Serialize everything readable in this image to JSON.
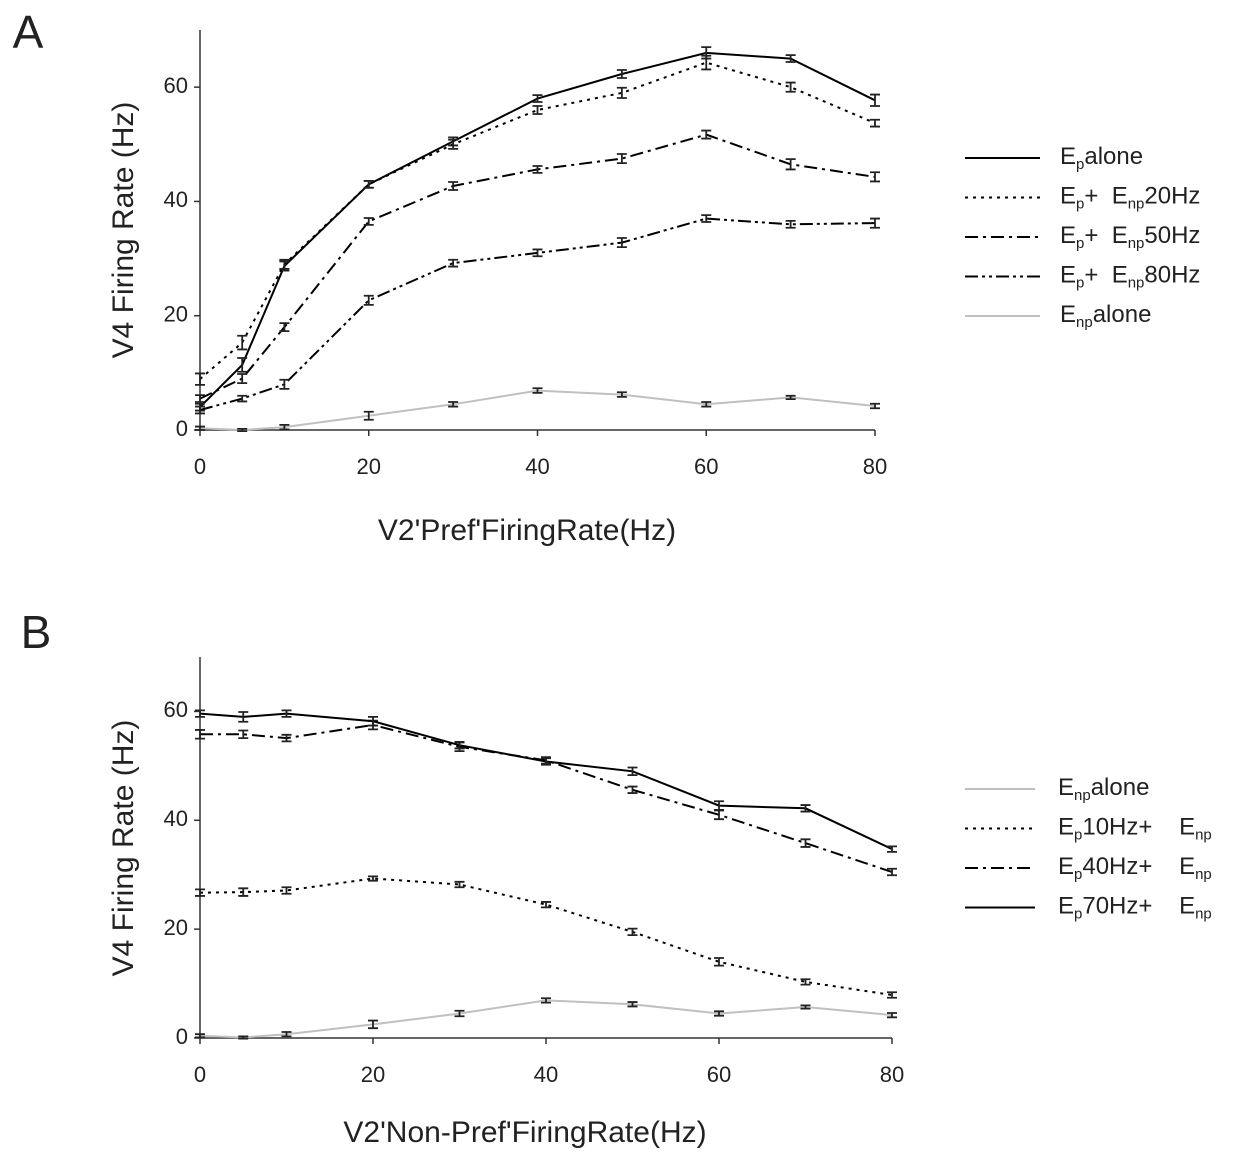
{
  "chart_data": [
    {
      "type": "line",
      "panel_label": "A",
      "x_label": "V2'Pref'FiringRate(Hz)",
      "y_label": "V4 Firing Rate (Hz)",
      "x": [
        0,
        5,
        10,
        20,
        30,
        40,
        50,
        60,
        70,
        80
      ],
      "xlim": [
        0,
        80
      ],
      "xticks": [
        0,
        20,
        40,
        60,
        80
      ],
      "ylim": [
        0,
        70
      ],
      "yticks": [
        0,
        20,
        40,
        60
      ],
      "series": [
        {
          "name": [
            "E",
            "p",
            "alone"
          ],
          "color": "#000000",
          "style": "solid",
          "values": [
            4,
            11.4,
            28.7,
            43,
            50.5,
            58,
            62.3,
            66,
            65,
            57.7
          ],
          "errors": [
            0.6,
            1.2,
            0.8,
            0.6,
            0.7,
            0.6,
            0.7,
            1.0,
            0.6,
            1.0
          ]
        },
        {
          "name": [
            "E",
            "p",
            "+  E",
            "np",
            "20Hz"
          ],
          "color": "#000000",
          "style": "dotted",
          "values": [
            8.9,
            15.3,
            29,
            43,
            50,
            56,
            59,
            64.3,
            60,
            53.7
          ],
          "errors": [
            1.0,
            1.2,
            0.8,
            0.6,
            0.8,
            0.7,
            0.9,
            1.2,
            0.8,
            0.6
          ]
        },
        {
          "name": [
            "E",
            "p",
            "+  E",
            "np",
            "50Hz"
          ],
          "color": "#000000",
          "style": "dashdot",
          "values": [
            5.5,
            9,
            18,
            36.5,
            42.7,
            45.6,
            47.5,
            51.7,
            46.5,
            44.3
          ],
          "errors": [
            0.6,
            0.8,
            0.7,
            0.6,
            0.7,
            0.6,
            0.8,
            0.7,
            0.9,
            0.8
          ]
        },
        {
          "name": [
            "E",
            "p",
            "+  E",
            "np",
            "80Hz"
          ],
          "color": "#000000",
          "style": "dashdotdot",
          "values": [
            3.5,
            5.5,
            8,
            22.7,
            29.2,
            31,
            32.8,
            37,
            36,
            36.2
          ],
          "errors": [
            0.6,
            0.5,
            0.8,
            0.8,
            0.6,
            0.6,
            0.8,
            0.6,
            0.6,
            0.8
          ]
        },
        {
          "name": [
            "E",
            "np",
            "alone"
          ],
          "color": "#c0c0c0",
          "style": "solid",
          "values": [
            0.3,
            0,
            0.5,
            2.5,
            4.5,
            6.9,
            6.2,
            4.5,
            5.7,
            4.2
          ],
          "errors": [
            0.3,
            0.2,
            0.4,
            0.7,
            0.4,
            0.4,
            0.4,
            0.4,
            0.3,
            0.4
          ]
        }
      ]
    },
    {
      "type": "line",
      "panel_label": "B",
      "x_label": "V2'Non-Pref'FiringRate(Hz)",
      "y_label": "V4 Firing Rate (Hz)",
      "x": [
        0,
        5,
        10,
        20,
        30,
        40,
        50,
        60,
        70,
        80
      ],
      "xlim": [
        0,
        80
      ],
      "xticks": [
        0,
        20,
        40,
        60,
        80
      ],
      "ylim": [
        0,
        70
      ],
      "yticks": [
        0,
        20,
        40,
        60
      ],
      "series": [
        {
          "name": [
            "E",
            "np",
            "alone"
          ],
          "color": "#c0c0c0",
          "style": "solid",
          "values": [
            0.4,
            0.1,
            0.7,
            2.5,
            4.5,
            6.9,
            6.2,
            4.5,
            5.7,
            4.2
          ],
          "errors": [
            0.3,
            0.2,
            0.4,
            0.7,
            0.5,
            0.4,
            0.4,
            0.4,
            0.3,
            0.4
          ]
        },
        {
          "name": [
            "E",
            "p",
            "10Hz+    E",
            "np"
          ],
          "color": "#000000",
          "style": "dotted",
          "values": [
            26.7,
            26.8,
            27.1,
            29.3,
            28.2,
            24.5,
            19.5,
            14,
            10.3,
            7.9
          ],
          "errors": [
            0.6,
            0.7,
            0.6,
            0.4,
            0.5,
            0.5,
            0.6,
            0.7,
            0.5,
            0.5
          ]
        },
        {
          "name": [
            "E",
            "p",
            "40Hz+    E",
            "np"
          ],
          "color": "#000000",
          "style": "dashdot",
          "values": [
            55.8,
            55.8,
            55.1,
            57.5,
            53.5,
            51,
            45.6,
            41,
            35.8,
            30.5
          ],
          "errors": [
            0.8,
            0.7,
            0.6,
            0.8,
            0.8,
            0.6,
            0.6,
            0.8,
            0.7,
            0.6
          ]
        },
        {
          "name": [
            "E",
            "p",
            "70Hz+    E",
            "np"
          ],
          "color": "#000000",
          "style": "solid",
          "values": [
            59.6,
            59,
            59.6,
            58.2,
            53.8,
            50.8,
            49,
            42.7,
            42.2,
            34.7
          ],
          "errors": [
            0.6,
            0.9,
            0.6,
            0.8,
            0.6,
            0.6,
            0.7,
            0.8,
            0.6,
            0.5
          ]
        }
      ]
    }
  ]
}
